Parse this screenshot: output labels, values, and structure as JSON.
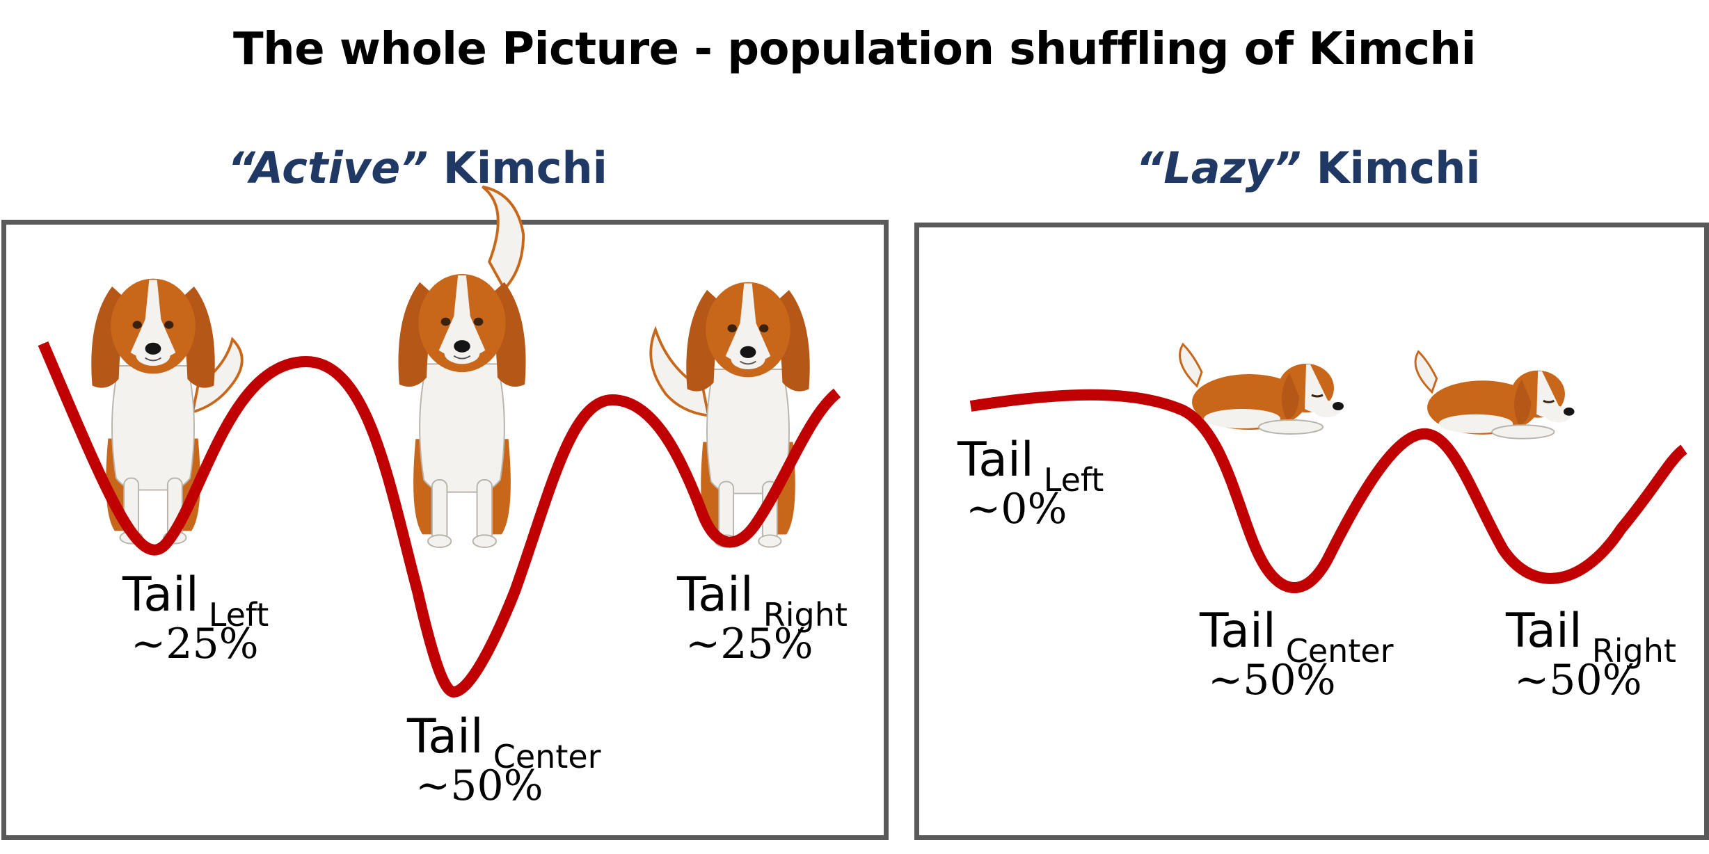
{
  "title": "The whole Picture - population shuffling of Kimchi",
  "colors": {
    "curve": "#c00000",
    "heading": "#1f3864",
    "border": "#595959",
    "fur": "#c8661a"
  },
  "panels": {
    "active": {
      "heading_quote": "“Active”",
      "heading_rest": " Kimchi",
      "wells": [
        {
          "name": "Tail",
          "sub": "Left",
          "value": "~25%"
        },
        {
          "name": "Tail",
          "sub": "Center",
          "value": "~50%"
        },
        {
          "name": "Tail",
          "sub": "Right",
          "value": "~25%"
        }
      ]
    },
    "lazy": {
      "heading_quote": "“Lazy”",
      "heading_rest": " Kimchi",
      "wells": [
        {
          "name": "Tail",
          "sub": "Left",
          "value": "~0%"
        },
        {
          "name": "Tail",
          "sub": "Center",
          "value": "~50%"
        },
        {
          "name": "Tail",
          "sub": "Right",
          "value": "~50%"
        }
      ]
    }
  }
}
